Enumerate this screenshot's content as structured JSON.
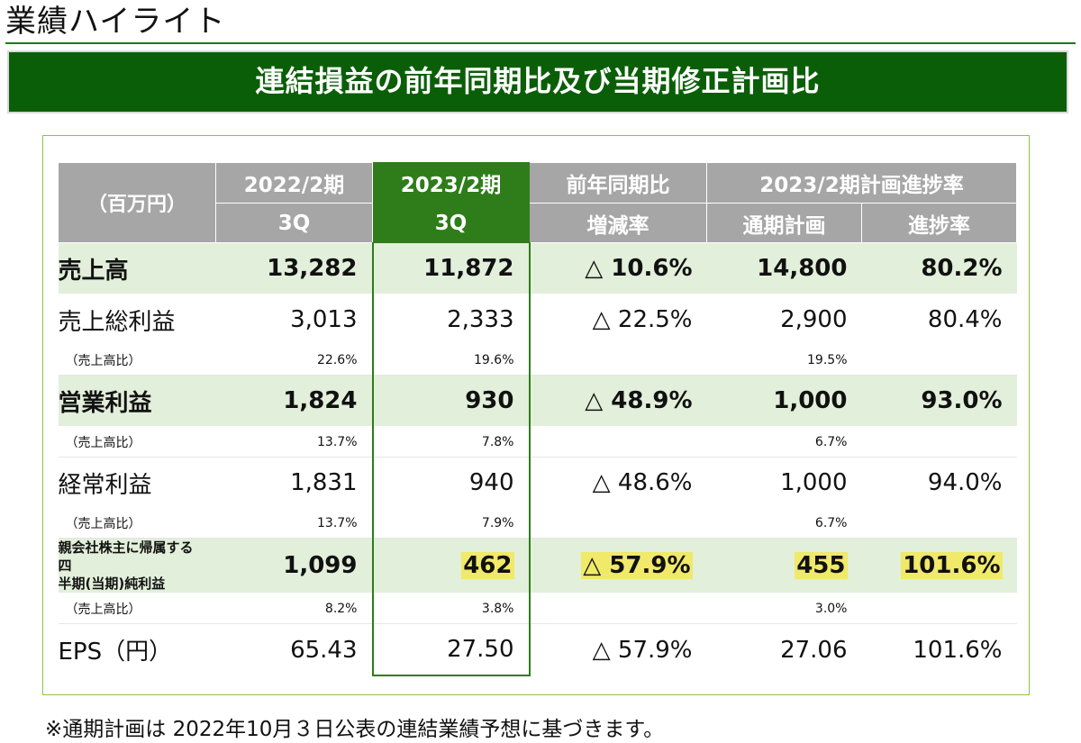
{
  "page_title": "業績ハイライト",
  "banner_title": "連結損益の前年同期比及び当期修正計画比",
  "table": {
    "header": {
      "unit": "（百万円）",
      "prev_year": "2022/2期",
      "prev_q": "3Q",
      "cur_year": "2023/2期",
      "cur_q": "3Q",
      "yoy": "前年同期比",
      "yoy_sub": "増減率",
      "plan_group": "2023/2期計画進捗率",
      "plan": "通期計画",
      "progress": "進捗率"
    },
    "rows": {
      "sales": {
        "label": "売上高",
        "prev": "13,282",
        "cur": "11,872",
        "yoy": "△ 10.6%",
        "plan": "14,800",
        "progress": "80.2%"
      },
      "gross": {
        "label": "売上総利益",
        "prev": "3,013",
        "cur": "2,333",
        "yoy": "△ 22.5%",
        "plan": "2,900",
        "progress": "80.4%"
      },
      "gross_ratio": {
        "label": "（売上高比）",
        "prev": "22.6%",
        "cur": "19.6%",
        "plan": "19.5%"
      },
      "op": {
        "label": "営業利益",
        "prev": "1,824",
        "cur": "930",
        "yoy": "△ 48.9%",
        "plan": "1,000",
        "progress": "93.0%"
      },
      "op_ratio": {
        "label": "（売上高比）",
        "prev": "13.7%",
        "cur": "7.8%",
        "plan": "6.7%"
      },
      "ord": {
        "label": "経常利益",
        "prev": "1,831",
        "cur": "940",
        "yoy": "△ 48.6%",
        "plan": "1,000",
        "progress": "94.0%"
      },
      "ord_ratio": {
        "label": "（売上高比）",
        "prev": "13.7%",
        "cur": "7.9%",
        "plan": "6.7%"
      },
      "net": {
        "label_line1": "親会社株主に帰属する四",
        "label_line2": "半期(当期)純利益",
        "prev": "1,099",
        "cur": "462",
        "yoy": "△ 57.9%",
        "plan": "455",
        "progress": "101.6%"
      },
      "net_ratio": {
        "label": "（売上高比）",
        "prev": "8.2%",
        "cur": "3.8%",
        "plan": "3.0%"
      },
      "eps": {
        "label": "EPS（円）",
        "prev": "65.43",
        "cur": "27.50",
        "yoy": "△ 57.9%",
        "plan": "27.06",
        "progress": "101.6%"
      }
    }
  },
  "footnote": "※通期計画は 2022年10月３日公表の連結業績予想に基づきます。",
  "colors": {
    "banner": "#0b5e08",
    "current_column": "#2e7d1a",
    "header_gray": "#a6a6a6",
    "row_highlight": "#e2efda",
    "marker": "#f0e96a",
    "frame": "#8cc63f"
  }
}
